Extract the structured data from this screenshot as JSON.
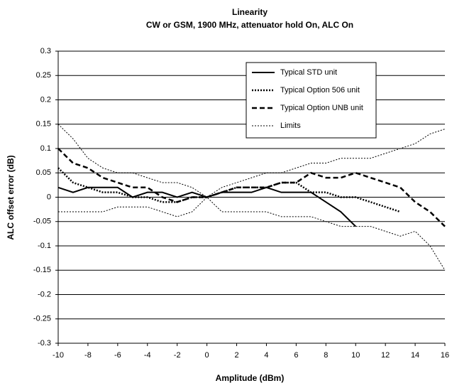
{
  "chart_data": {
    "type": "line",
    "title": "Linearity",
    "subtitle": "CW or GSM, 1900 MHz, attenuator hold On, ALC On",
    "x_label": "Amplitude (dBm)",
    "y_label": "ALC offset error (dB)",
    "x": [
      -10,
      -9,
      -8,
      -7,
      -6,
      -5,
      -4,
      -3,
      -2,
      -1,
      0,
      1,
      2,
      3,
      4,
      5,
      6,
      7,
      8,
      9,
      10,
      11,
      12,
      13,
      14,
      15,
      16
    ],
    "xlim": [
      -10,
      16
    ],
    "xticks": [
      -10,
      -8,
      -6,
      -4,
      -2,
      0,
      2,
      4,
      6,
      8,
      10,
      12,
      14,
      16
    ],
    "ylim": [
      -0.3,
      0.3
    ],
    "yticks": [
      -0.3,
      -0.25,
      -0.2,
      -0.15,
      -0.1,
      -0.05,
      0,
      0.05,
      0.1,
      0.15,
      0.2,
      0.25,
      0.3
    ],
    "grid": true,
    "legend": "upper right",
    "series": [
      {
        "name": "Typical STD unit",
        "color": "#000000",
        "dash": "solid",
        "width": 2,
        "values": [
          0.02,
          0.01,
          0.02,
          0.02,
          0.02,
          0.0,
          0.01,
          0.01,
          0.0,
          0.01,
          0.0,
          0.01,
          0.01,
          0.01,
          0.02,
          0.01,
          0.01,
          0.01,
          -0.01,
          -0.03,
          -0.06,
          null,
          null,
          null,
          null,
          null,
          null
        ]
      },
      {
        "name": "Typical Option 506 unit",
        "color": "#000000",
        "dash": "dotted",
        "width": 2.5,
        "values": [
          0.06,
          0.03,
          0.02,
          0.01,
          0.01,
          0.0,
          0.0,
          -0.01,
          -0.01,
          0.0,
          0.0,
          0.01,
          0.02,
          0.02,
          0.02,
          0.03,
          0.03,
          0.01,
          0.01,
          0.0,
          0.0,
          -0.01,
          -0.02,
          -0.03,
          null,
          null,
          null
        ]
      },
      {
        "name": "Typical Option UNB unit",
        "color": "#000000",
        "dash": "dashed",
        "width": 2.5,
        "values": [
          0.1,
          0.07,
          0.06,
          0.04,
          0.03,
          0.02,
          0.02,
          0.0,
          -0.01,
          0.0,
          0.0,
          0.01,
          0.02,
          0.02,
          0.02,
          0.03,
          0.03,
          0.05,
          0.04,
          0.04,
          0.05,
          0.04,
          0.03,
          0.02,
          -0.01,
          -0.03,
          -0.06
        ]
      },
      {
        "name": "Limits",
        "color": "#000000",
        "dash": "dotted",
        "width": 1,
        "values": [
          0.15,
          0.12,
          0.08,
          0.06,
          0.05,
          0.05,
          0.04,
          0.03,
          0.03,
          0.02,
          0.0,
          0.02,
          0.03,
          0.04,
          0.05,
          0.05,
          0.06,
          0.07,
          0.07,
          0.08,
          0.08,
          0.08,
          0.09,
          0.1,
          0.11,
          0.13,
          0.14
        ]
      },
      {
        "color": "#000000",
        "dash": "dotted",
        "width": 1,
        "values": [
          -0.03,
          -0.03,
          -0.03,
          -0.03,
          -0.02,
          -0.02,
          -0.02,
          -0.03,
          -0.04,
          -0.03,
          0.0,
          -0.03,
          -0.03,
          -0.03,
          -0.03,
          -0.04,
          -0.04,
          -0.04,
          -0.05,
          -0.06,
          -0.06,
          -0.06,
          -0.07,
          -0.08,
          -0.07,
          -0.1,
          -0.15
        ]
      }
    ]
  }
}
